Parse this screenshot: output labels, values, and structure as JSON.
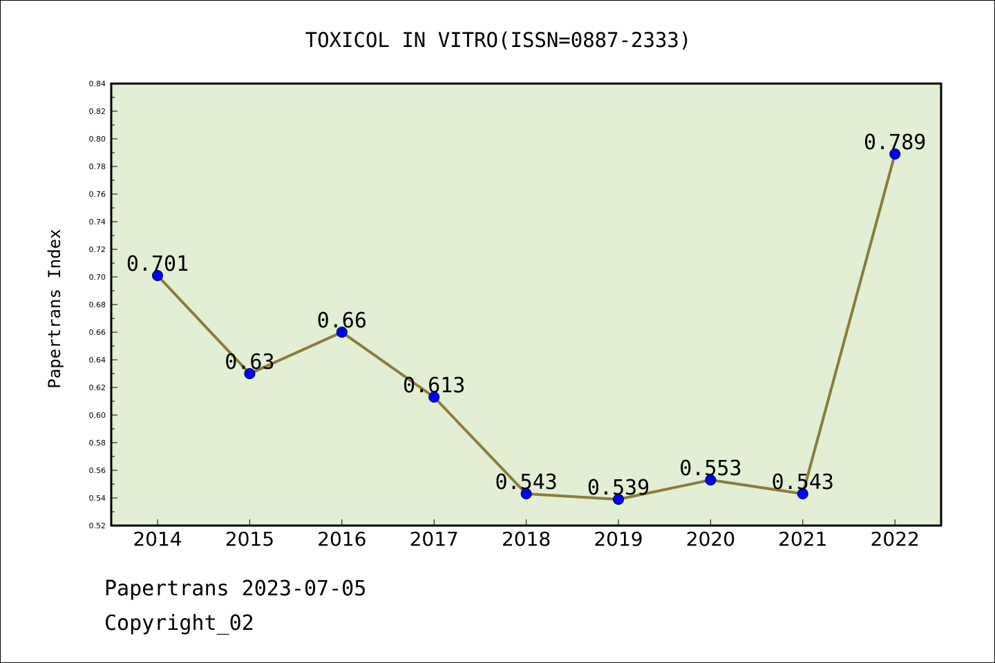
{
  "chart_data": {
    "type": "line",
    "title": "TOXICOL IN VITRO(ISSN=0887-2333)",
    "xlabel": "",
    "ylabel": "Papertrans Index",
    "categories": [
      "2014",
      "2015",
      "2016",
      "2017",
      "2018",
      "2019",
      "2020",
      "2021",
      "2022"
    ],
    "values": [
      0.701,
      0.63,
      0.66,
      0.613,
      0.543,
      0.539,
      0.553,
      0.543,
      0.789
    ],
    "data_labels": [
      "0.701",
      "0.63",
      "0.66",
      "0.613",
      "0.543",
      "0.539",
      "0.553",
      "0.543",
      "0.789"
    ],
    "ylim": [
      0.52,
      0.84
    ],
    "yticks": [
      "0.52",
      "0.54",
      "0.56",
      "0.58",
      "0.60",
      "0.62",
      "0.64",
      "0.66",
      "0.68",
      "0.70",
      "0.72",
      "0.74",
      "0.76",
      "0.78",
      "0.80",
      "0.82",
      "0.84"
    ],
    "grid": false,
    "colors": {
      "plot_background": "#e2efd5",
      "line": "#8b7d3a",
      "marker": "#0000ff"
    }
  },
  "footer": {
    "source": "Papertrans 2023-07-05",
    "copyright": "Copyright_02"
  }
}
